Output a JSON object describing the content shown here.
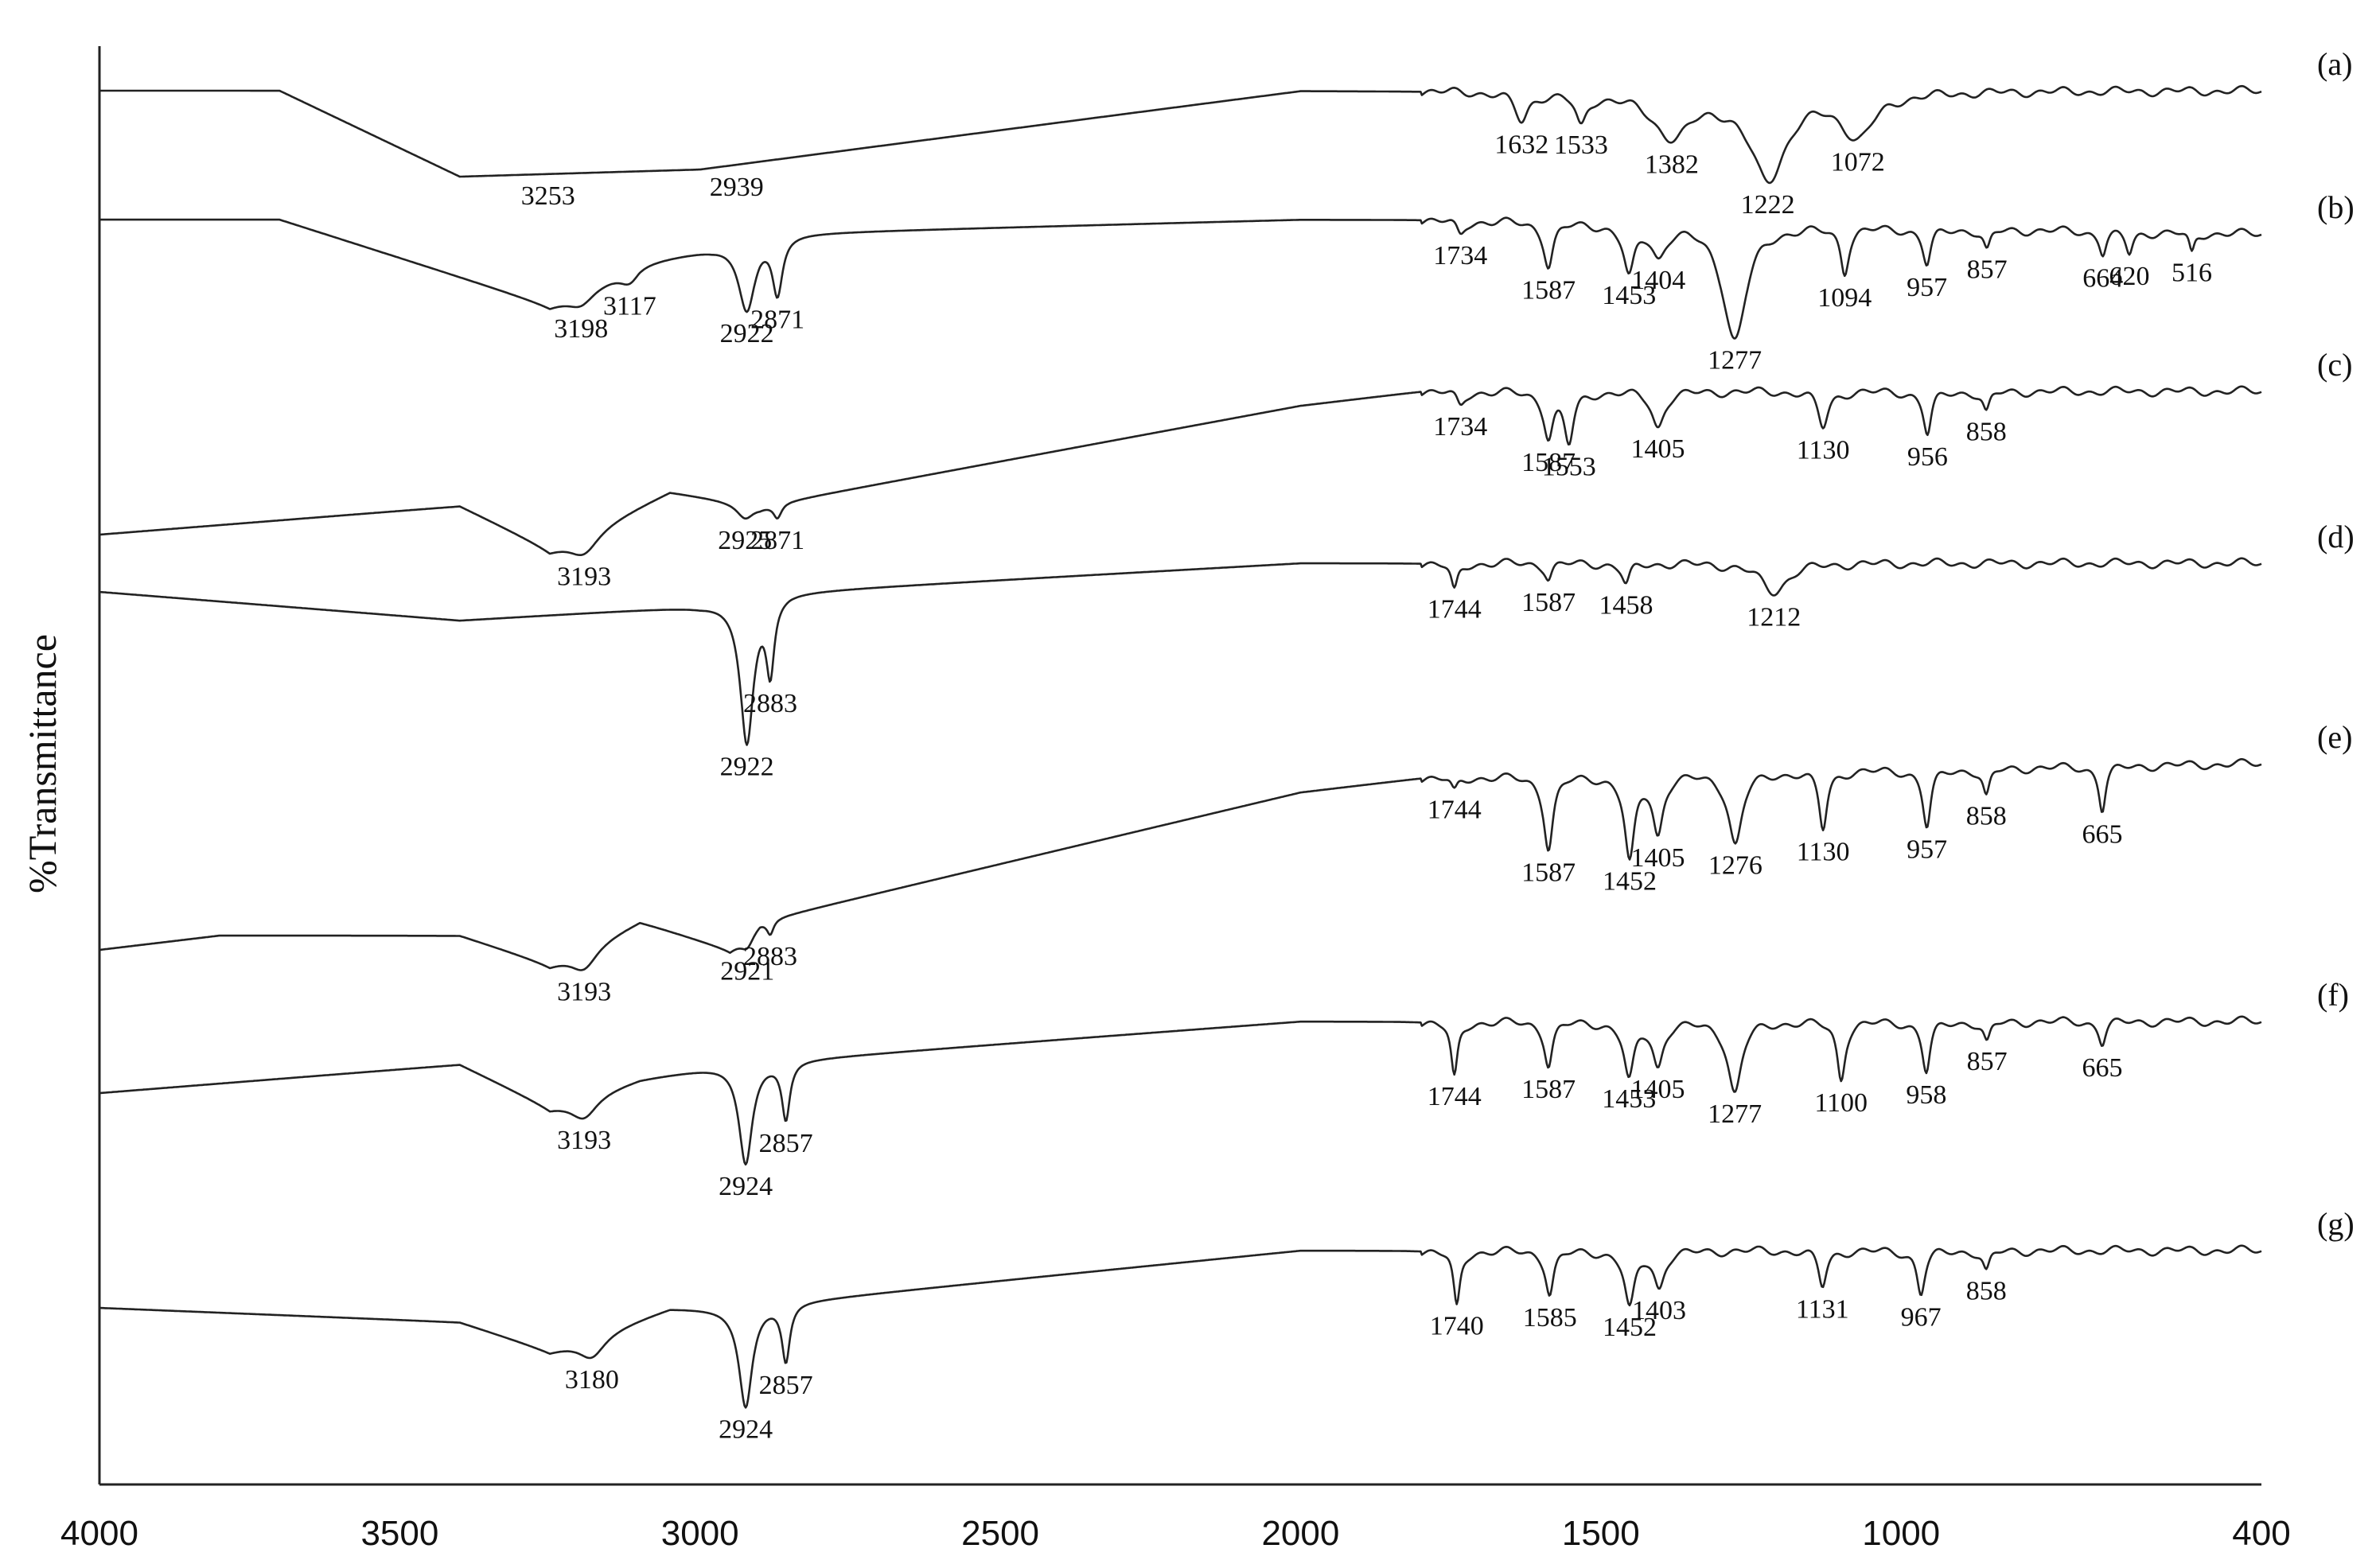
{
  "chart_data": {
    "type": "line",
    "title": "",
    "xlabel": "",
    "ylabel": "%Transmittance",
    "xlim": [
      4000,
      400
    ],
    "x_reversed": true,
    "ylim": [
      0,
      100
    ],
    "x_ticks": [
      4000,
      3500,
      3000,
      2500,
      2000,
      1500,
      1000,
      400
    ],
    "x_tick_labels": [
      "4000",
      "3500",
      "3000",
      "2500",
      "2000",
      "1500",
      "1000",
      "400"
    ],
    "grid": false,
    "legend": "none",
    "series": [
      {
        "name": "(a)",
        "offset": 0,
        "baseline": 97,
        "trend": 0,
        "start_level": 97,
        "slope_segments": [
          [
            4000,
            97
          ],
          [
            3700,
            97
          ],
          [
            3400,
            91
          ],
          [
            3000,
            91.5
          ],
          [
            2000,
            97
          ],
          [
            1800,
            97
          ],
          [
            400,
            97
          ]
        ],
        "bands": [
          {
            "x": 3253,
            "depth": 0,
            "width": 0
          },
          {
            "x": 1632,
            "depth": 2,
            "width": 20
          },
          {
            "x": 1533,
            "depth": 2.2,
            "width": 16
          },
          {
            "x": 1382,
            "depth": 3,
            "width": 60
          },
          {
            "x": 1222,
            "depth": 6,
            "width": 55
          },
          {
            "x": 1072,
            "depth": 3,
            "width": 50
          }
        ],
        "peak_labels": [
          {
            "x": 3253,
            "text": "3253"
          },
          {
            "x": 2939,
            "text": "2939"
          },
          {
            "x": 1632,
            "text": "1632"
          },
          {
            "x": 1533,
            "text": "1533"
          },
          {
            "x": 1382,
            "text": "1382"
          },
          {
            "x": 1222,
            "text": "1222"
          },
          {
            "x": 1072,
            "text": "1072"
          }
        ]
      },
      {
        "name": "(b)",
        "slope_segments": [
          [
            4000,
            88
          ],
          [
            3700,
            88
          ],
          [
            3250,
            82
          ],
          [
            3100,
            85
          ],
          [
            2980,
            86
          ],
          [
            2900,
            87
          ],
          [
            2000,
            88
          ],
          [
            1800,
            88
          ],
          [
            400,
            87
          ]
        ],
        "bands": [
          {
            "x": 3198,
            "depth": 1,
            "width": 40
          },
          {
            "x": 3117,
            "depth": 1,
            "width": 30
          },
          {
            "x": 2922,
            "depth": 5,
            "width": 25
          },
          {
            "x": 2871,
            "depth": 4,
            "width": 15
          },
          {
            "x": 1734,
            "depth": 1,
            "width": 12
          },
          {
            "x": 1587,
            "depth": 3,
            "width": 14
          },
          {
            "x": 1453,
            "depth": 3.5,
            "width": 16
          },
          {
            "x": 1404,
            "depth": 2,
            "width": 20
          },
          {
            "x": 1277,
            "depth": 8,
            "width": 35
          },
          {
            "x": 1094,
            "depth": 3,
            "width": 12
          },
          {
            "x": 957,
            "depth": 2.5,
            "width": 12
          },
          {
            "x": 857,
            "depth": 1.5,
            "width": 10
          },
          {
            "x": 664,
            "depth": 1.5,
            "width": 10
          },
          {
            "x": 620,
            "depth": 1.5,
            "width": 10
          },
          {
            "x": 516,
            "depth": 1.5,
            "width": 8
          }
        ],
        "peak_labels": [
          {
            "x": 3198,
            "text": "3198"
          },
          {
            "x": 3117,
            "text": "3117"
          },
          {
            "x": 2922,
            "text": "2922"
          },
          {
            "x": 2871,
            "text": "2871"
          },
          {
            "x": 1734,
            "text": "1734"
          },
          {
            "x": 1587,
            "text": "1587"
          },
          {
            "x": 1453,
            "text": "1453"
          },
          {
            "x": 1404,
            "text": "1404"
          },
          {
            "x": 1277,
            "text": "1277"
          },
          {
            "x": 1094,
            "text": "1094"
          },
          {
            "x": 957,
            "text": "957"
          },
          {
            "x": 857,
            "text": "857"
          },
          {
            "x": 664,
            "text": "664"
          },
          {
            "x": 620,
            "text": "620"
          },
          {
            "x": 516,
            "text": "516"
          }
        ]
      },
      {
        "name": "(c)",
        "slope_segments": [
          [
            4000,
            66
          ],
          [
            3400,
            68
          ],
          [
            3250,
            65
          ],
          [
            3050,
            69
          ],
          [
            2900,
            68
          ],
          [
            2000,
            75
          ],
          [
            1800,
            76
          ],
          [
            400,
            76
          ]
        ],
        "bands": [
          {
            "x": 3193,
            "depth": 1.5,
            "width": 45
          },
          {
            "x": 2925,
            "depth": 1,
            "width": 25
          },
          {
            "x": 2871,
            "depth": 1,
            "width": 12
          },
          {
            "x": 1734,
            "depth": 1,
            "width": 12
          },
          {
            "x": 1587,
            "depth": 3,
            "width": 14
          },
          {
            "x": 1553,
            "depth": 3.5,
            "width": 14
          },
          {
            "x": 1405,
            "depth": 2.5,
            "width": 18
          },
          {
            "x": 1130,
            "depth": 2.5,
            "width": 15
          },
          {
            "x": 956,
            "depth": 3,
            "width": 12
          },
          {
            "x": 858,
            "depth": 1.5,
            "width": 10
          }
        ],
        "peak_labels": [
          {
            "x": 3193,
            "text": "3193"
          },
          {
            "x": 2925,
            "text": "2925"
          },
          {
            "x": 2871,
            "text": "2871"
          },
          {
            "x": 1734,
            "text": "1734"
          },
          {
            "x": 1587,
            "text": "1587"
          },
          {
            "x": 1553,
            "text": "1553"
          },
          {
            "x": 1405,
            "text": "1405"
          },
          {
            "x": 1130,
            "text": "1130"
          },
          {
            "x": 956,
            "text": "956"
          },
          {
            "x": 858,
            "text": "858"
          }
        ]
      },
      {
        "name": "(d)",
        "slope_segments": [
          [
            4000,
            62
          ],
          [
            3400,
            60
          ],
          [
            3000,
            61
          ],
          [
            2850,
            62
          ],
          [
            2000,
            64
          ],
          [
            1800,
            64
          ],
          [
            400,
            64
          ]
        ],
        "bands": [
          {
            "x": 2922,
            "depth": 10,
            "width": 20
          },
          {
            "x": 2883,
            "depth": 5,
            "width": 12
          },
          {
            "x": 1744,
            "depth": 2,
            "width": 10
          },
          {
            "x": 1587,
            "depth": 1,
            "width": 10
          },
          {
            "x": 1458,
            "depth": 1.5,
            "width": 12
          },
          {
            "x": 1212,
            "depth": 2,
            "width": 40
          }
        ],
        "peak_labels": [
          {
            "x": 2922,
            "text": "2922"
          },
          {
            "x": 2883,
            "text": "2883"
          },
          {
            "x": 1744,
            "text": "1744"
          },
          {
            "x": 1587,
            "text": "1587"
          },
          {
            "x": 1458,
            "text": "1458"
          },
          {
            "x": 1212,
            "text": "1212"
          }
        ]
      },
      {
        "name": "(e)",
        "slope_segments": [
          [
            4000,
            37
          ],
          [
            3800,
            38
          ],
          [
            3400,
            38
          ],
          [
            3250,
            36
          ],
          [
            3100,
            39
          ],
          [
            2950,
            37
          ],
          [
            2900,
            39
          ],
          [
            2000,
            48
          ],
          [
            1800,
            49
          ],
          [
            400,
            50
          ]
        ],
        "bands": [
          {
            "x": 3193,
            "depth": 1.5,
            "width": 40
          },
          {
            "x": 2921,
            "depth": 1,
            "width": 20
          },
          {
            "x": 2883,
            "depth": 1,
            "width": 10
          },
          {
            "x": 1744,
            "depth": 1,
            "width": 10
          },
          {
            "x": 1587,
            "depth": 5,
            "width": 14
          },
          {
            "x": 1452,
            "depth": 6,
            "width": 15
          },
          {
            "x": 1405,
            "depth": 4,
            "width": 15
          },
          {
            "x": 1276,
            "depth": 5,
            "width": 20
          },
          {
            "x": 1130,
            "depth": 4,
            "width": 12
          },
          {
            "x": 957,
            "depth": 4,
            "width": 12
          },
          {
            "x": 858,
            "depth": 2,
            "width": 10
          },
          {
            "x": 665,
            "depth": 3,
            "width": 10
          }
        ],
        "peak_labels": [
          {
            "x": 3193,
            "text": "3193"
          },
          {
            "x": 2921,
            "text": "2921"
          },
          {
            "x": 2883,
            "text": "2883"
          },
          {
            "x": 1744,
            "text": "1744"
          },
          {
            "x": 1587,
            "text": "1587"
          },
          {
            "x": 1452,
            "text": "1452"
          },
          {
            "x": 1405,
            "text": "1405"
          },
          {
            "x": 1276,
            "text": "1276"
          },
          {
            "x": 1130,
            "text": "1130"
          },
          {
            "x": 957,
            "text": "957"
          },
          {
            "x": 858,
            "text": "858"
          },
          {
            "x": 665,
            "text": "665"
          }
        ]
      },
      {
        "name": "(f)",
        "slope_segments": [
          [
            4000,
            27
          ],
          [
            3400,
            29
          ],
          [
            3250,
            26
          ],
          [
            3100,
            28
          ],
          [
            2950,
            29
          ],
          [
            2000,
            32
          ],
          [
            1800,
            32
          ],
          [
            400,
            32
          ]
        ],
        "bands": [
          {
            "x": 3193,
            "depth": 1.5,
            "width": 40
          },
          {
            "x": 2924,
            "depth": 7,
            "width": 20
          },
          {
            "x": 2857,
            "depth": 4,
            "width": 12
          },
          {
            "x": 1744,
            "depth": 4,
            "width": 10
          },
          {
            "x": 1587,
            "depth": 3,
            "width": 12
          },
          {
            "x": 1453,
            "depth": 4,
            "width": 15
          },
          {
            "x": 1405,
            "depth": 3,
            "width": 15
          },
          {
            "x": 1277,
            "depth": 5,
            "width": 20
          },
          {
            "x": 1100,
            "depth": 4,
            "width": 12
          },
          {
            "x": 958,
            "depth": 3.5,
            "width": 12
          },
          {
            "x": 857,
            "depth": 1.5,
            "width": 10
          },
          {
            "x": 665,
            "depth": 1.5,
            "width": 10
          }
        ],
        "peak_labels": [
          {
            "x": 3193,
            "text": "3193"
          },
          {
            "x": 2924,
            "text": "2924"
          },
          {
            "x": 2857,
            "text": "2857"
          },
          {
            "x": 1744,
            "text": "1744"
          },
          {
            "x": 1587,
            "text": "1587"
          },
          {
            "x": 1453,
            "text": "1453"
          },
          {
            "x": 1405,
            "text": "1405"
          },
          {
            "x": 1277,
            "text": "1277"
          },
          {
            "x": 1100,
            "text": "1100"
          },
          {
            "x": 958,
            "text": "958"
          },
          {
            "x": 857,
            "text": "857"
          },
          {
            "x": 665,
            "text": "665"
          }
        ]
      },
      {
        "name": "(g)",
        "slope_segments": [
          [
            4000,
            12
          ],
          [
            3400,
            11
          ],
          [
            3250,
            9
          ],
          [
            3050,
            12
          ],
          [
            2950,
            12
          ],
          [
            2000,
            16
          ],
          [
            1800,
            16
          ],
          [
            400,
            16
          ]
        ],
        "bands": [
          {
            "x": 3180,
            "depth": 1.5,
            "width": 40
          },
          {
            "x": 2924,
            "depth": 7,
            "width": 20
          },
          {
            "x": 2857,
            "depth": 4,
            "width": 12
          },
          {
            "x": 1740,
            "depth": 4,
            "width": 10
          },
          {
            "x": 1585,
            "depth": 3,
            "width": 12
          },
          {
            "x": 1452,
            "depth": 4,
            "width": 15
          },
          {
            "x": 1403,
            "depth": 2.5,
            "width": 15
          },
          {
            "x": 1131,
            "depth": 2.5,
            "width": 12
          },
          {
            "x": 967,
            "depth": 3,
            "width": 12
          },
          {
            "x": 858,
            "depth": 1.5,
            "width": 10
          }
        ],
        "peak_labels": [
          {
            "x": 3180,
            "text": "3180"
          },
          {
            "x": 2924,
            "text": "2924"
          },
          {
            "x": 2857,
            "text": "2857"
          },
          {
            "x": 1740,
            "text": "1740"
          },
          {
            "x": 1585,
            "text": "1585"
          },
          {
            "x": 1452,
            "text": "1452"
          },
          {
            "x": 1403,
            "text": "1403"
          },
          {
            "x": 1131,
            "text": "1131"
          },
          {
            "x": 967,
            "text": "967"
          },
          {
            "x": 858,
            "text": "858"
          }
        ]
      }
    ]
  }
}
